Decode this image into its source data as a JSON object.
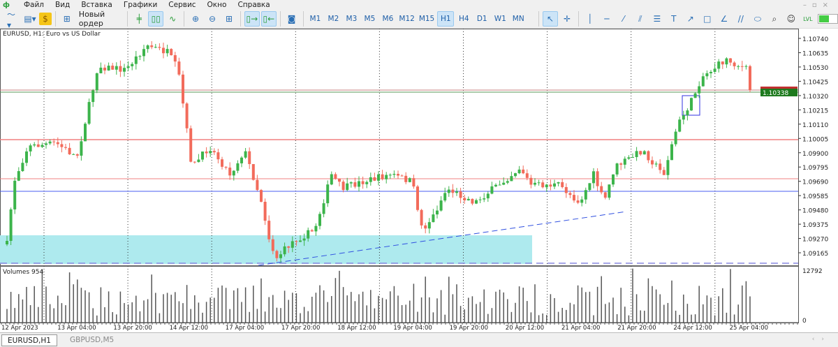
{
  "menu": [
    "Файл",
    "Вид",
    "Вставка",
    "Графики",
    "Сервис",
    "Окно",
    "Справка"
  ],
  "toolbar": {
    "new_order": "Новый ордер",
    "timeframes": [
      "M1",
      "M2",
      "M3",
      "M5",
      "M6",
      "M12",
      "M15",
      "H1",
      "H4",
      "D1",
      "W1",
      "MN"
    ],
    "active_timeframe": "H1"
  },
  "chart": {
    "title": "EURUSD, H1:  Euro vs US Dollar",
    "volume_label": "Volumes 954",
    "price_ticks": [
      "1.10740",
      "1.10635",
      "1.10530",
      "1.10425",
      "1.10320",
      "1.10215",
      "1.10110",
      "1.10005",
      "1.09900",
      "1.09795",
      "1.09690",
      "1.09585",
      "1.09480",
      "1.09375",
      "1.09270",
      "1.09165"
    ],
    "current_price": "1.10338",
    "volume_ticks": [
      "12792",
      "0"
    ],
    "time_labels": [
      "12 Apr 2023",
      "13 Apr 04:00",
      "13 Apr 20:00",
      "14 Apr 12:00",
      "17 Apr 04:00",
      "17 Apr 20:00",
      "18 Apr 12:00",
      "19 Apr 04:00",
      "19 Apr 20:00",
      "20 Apr 12:00",
      "21 Apr 04:00",
      "21 Apr 20:00",
      "24 Apr 12:00",
      "25 Apr 04:00"
    ],
    "colors": {
      "bull": "#3cb44b",
      "bear": "#f26b5b",
      "level_red": "#f08080",
      "level_blue": "#4a5cf0",
      "zone": "#aeeaee",
      "price_label": "#1e7a1e"
    }
  },
  "tabs": [
    "EURUSD,H1",
    "GBPUSD,M5"
  ]
}
